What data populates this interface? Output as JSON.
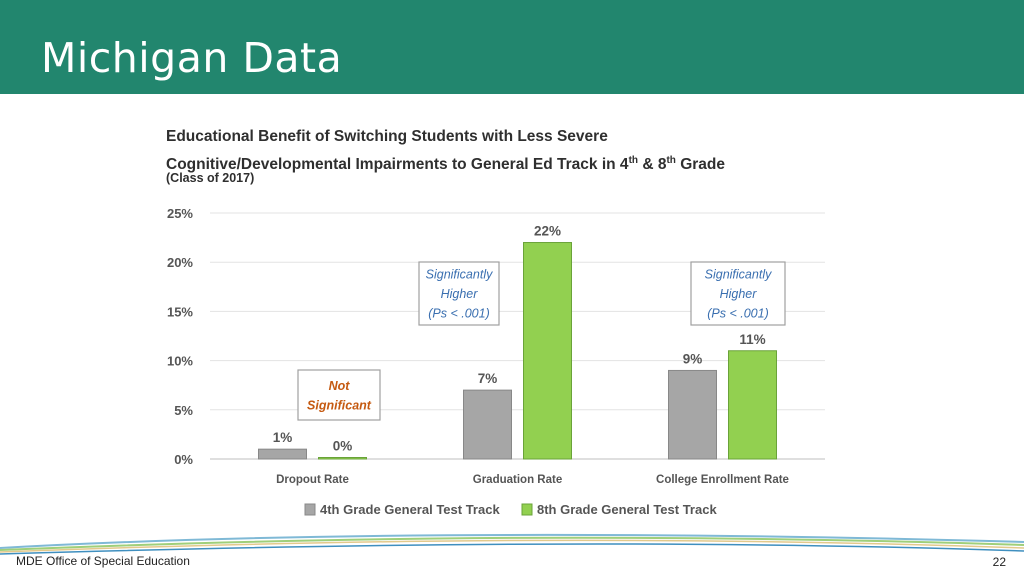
{
  "slide": {
    "title": "Michigan Data",
    "footer": "MDE Office of Special Education",
    "page_number": "22"
  },
  "colors": {
    "header": "#22866e",
    "series_4th": "#a6a6a6",
    "series_8th": "#92d050",
    "annotation_blue": "#3a6fb0",
    "annotation_orange": "#c55a11"
  },
  "chart_data": {
    "type": "bar",
    "title_line1": "Educational Benefit of Switching Students with Less Severe",
    "title_line2_prefix": "Cognitive/Developmental Impairments to General Ed Track in 4",
    "title_line2_sup1": "th",
    "title_line2_mid": " & 8",
    "title_line2_sup2": "th",
    "title_line2_suffix": " Grade",
    "subtitle": "(Class of 2017)",
    "categories": [
      "Dropout Rate",
      "Graduation Rate",
      "College Enrollment Rate"
    ],
    "series": [
      {
        "name": "4th Grade General Test Track",
        "values": [
          1,
          7,
          9
        ],
        "labels": [
          "1%",
          "7%",
          "9%"
        ]
      },
      {
        "name": "8th Grade General Test Track",
        "values": [
          0,
          22,
          11
        ],
        "labels": [
          "0%",
          "22%",
          "11%"
        ]
      }
    ],
    "y_ticks": [
      "0%",
      "5%",
      "10%",
      "15%",
      "20%",
      "25%"
    ],
    "ylim": [
      0,
      25
    ],
    "grid": true,
    "legend_position": "bottom",
    "annotations": [
      {
        "category_index": 0,
        "lines": [
          "Not",
          "Significant"
        ],
        "style": "orange"
      },
      {
        "category_index": 1,
        "lines": [
          "Significantly",
          "Higher",
          "(Ps < .001)"
        ],
        "style": "blue"
      },
      {
        "category_index": 2,
        "lines": [
          "Significantly",
          "Higher",
          "(Ps < .001)"
        ],
        "style": "blue"
      }
    ]
  }
}
